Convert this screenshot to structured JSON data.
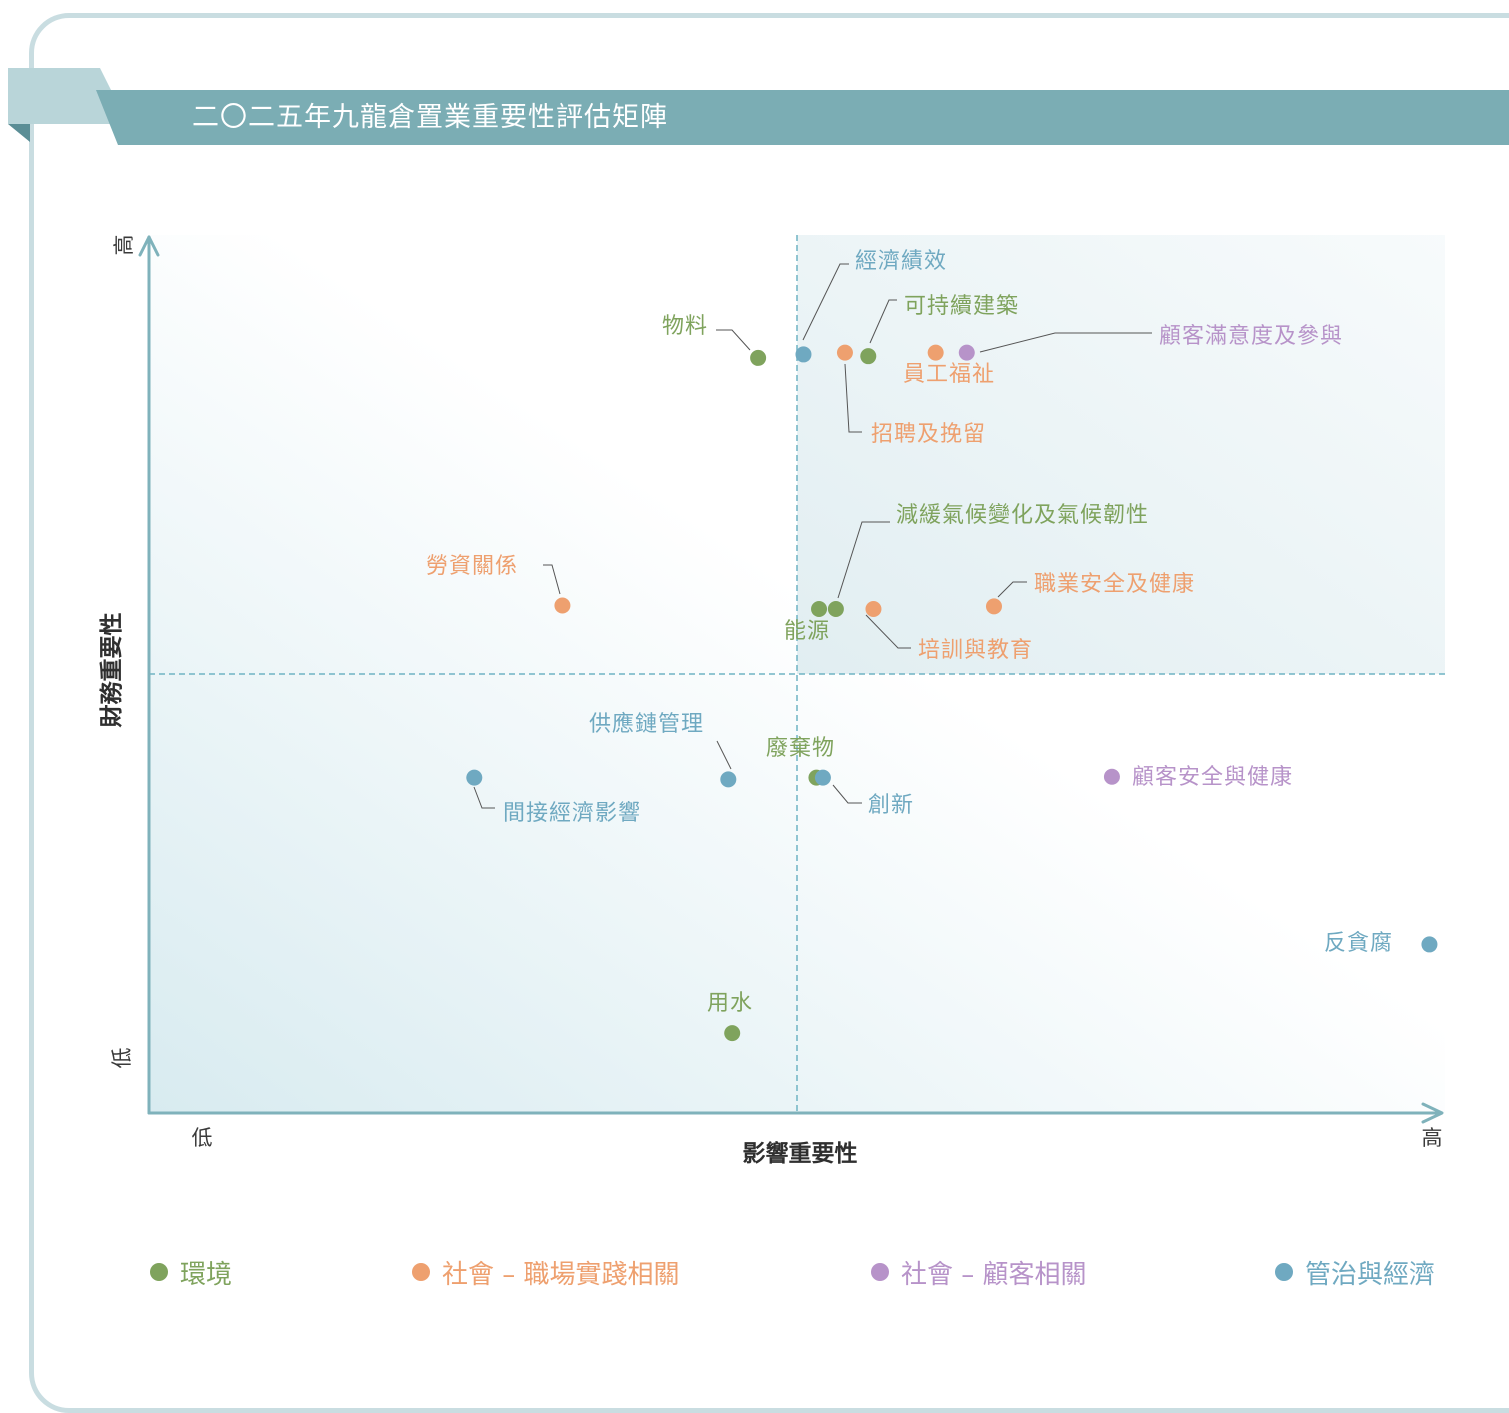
{
  "header": {
    "title": "二〇二五年九龍倉置業重要性評估矩陣"
  },
  "colors": {
    "環境": "#7fa35d",
    "社會 – 職場實踐相關": "#eea06f",
    "社會 – 顧客相關": "#b793c9",
    "管治與經濟": "#6fa9c1"
  },
  "chart_data": {
    "type": "scatter",
    "xlabel": "影響重要性",
    "ylabel": "財務重要性",
    "x_ticks": {
      "low": "低",
      "high": "高"
    },
    "y_ticks": {
      "low": "低",
      "high": "高"
    },
    "xlim": [
      0,
      100
    ],
    "ylim": [
      0,
      100
    ],
    "thresholds": {
      "x": 50,
      "y": 50
    },
    "grid": false,
    "legend_position": "bottom",
    "legend": [
      {
        "name": "環境",
        "category": "環境"
      },
      {
        "name": "社會 – 職場實踐相關",
        "category": "社會 – 職場實踐相關"
      },
      {
        "name": "社會 – 顧客相關",
        "category": "社會 – 顧客相關"
      },
      {
        "name": "管治與經濟",
        "category": "管治與經濟"
      }
    ],
    "points": [
      {
        "label": "經濟績效",
        "category": "管治與經濟",
        "x": 50.5,
        "y": 86.4
      },
      {
        "label": "物料",
        "category": "環境",
        "x": 47.0,
        "y": 86.0
      },
      {
        "label": "可持續建築",
        "category": "環境",
        "x": 55.5,
        "y": 86.2
      },
      {
        "label": "招聘及挽留",
        "category": "社會 – 職場實踐相關",
        "x": 53.7,
        "y": 86.6
      },
      {
        "label": "員工福祉",
        "category": "社會 – 職場實踐相關",
        "x": 60.7,
        "y": 86.6
      },
      {
        "label": "顧客滿意度及參與",
        "category": "社會 – 顧客相關",
        "x": 63.1,
        "y": 86.6
      },
      {
        "label": "減緩氣候變化及氣候韌性",
        "category": "環境",
        "x": 53.0,
        "y": 57.4
      },
      {
        "label": "能源",
        "category": "環境",
        "x": 51.7,
        "y": 57.4
      },
      {
        "label": "勞資關係",
        "category": "社會 – 職場實踐相關",
        "x": 31.9,
        "y": 57.8
      },
      {
        "label": "培訓與教育",
        "category": "社會 – 職場實踐相關",
        "x": 55.9,
        "y": 57.4
      },
      {
        "label": "職業安全及健康",
        "category": "社會 – 職場實踐相關",
        "x": 65.2,
        "y": 57.7
      },
      {
        "label": "供應鏈管理",
        "category": "管治與經濟",
        "x": 44.7,
        "y": 38.0
      },
      {
        "label": "間接經濟影響",
        "category": "管治與經濟",
        "x": 25.1,
        "y": 38.2
      },
      {
        "label": "廢棄物",
        "category": "環境",
        "x": 51.5,
        "y": 38.2
      },
      {
        "label": "創新",
        "category": "管治與經濟",
        "x": 52.0,
        "y": 38.2
      },
      {
        "label": "顧客安全與健康",
        "category": "社會 – 顧客相關",
        "x": 74.3,
        "y": 38.3
      },
      {
        "label": "反貪腐",
        "category": "管治與經濟",
        "x": 98.8,
        "y": 19.2
      },
      {
        "label": "用水",
        "category": "環境",
        "x": 45.0,
        "y": 9.1
      }
    ]
  }
}
